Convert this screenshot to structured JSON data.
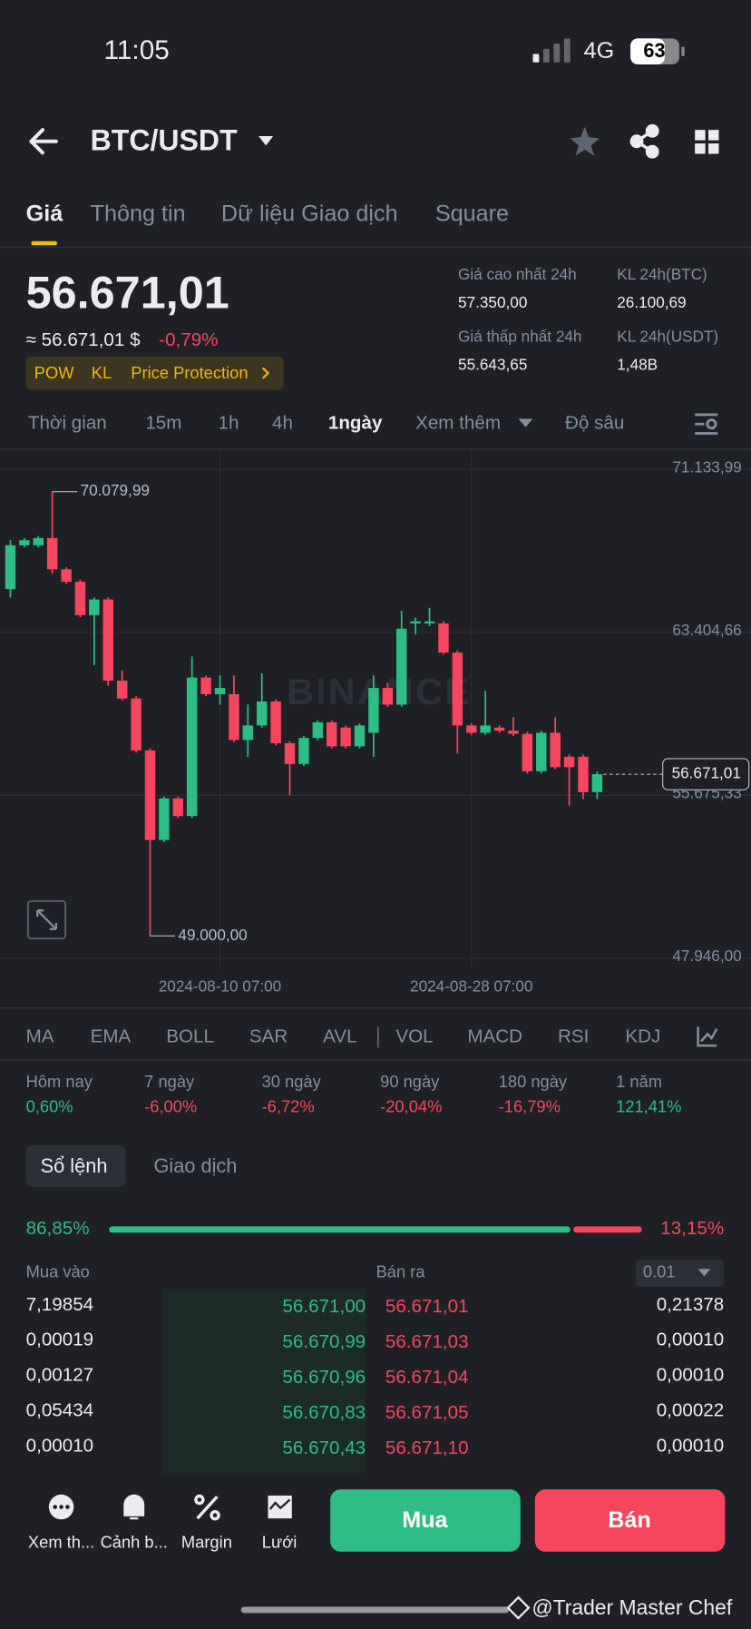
{
  "status_bar": {
    "time": "11:05",
    "network": "4G",
    "battery": "63"
  },
  "header": {
    "pair": "BTC/USDT"
  },
  "tabs": [
    "Giá",
    "Thông tin",
    "Dữ liệu Giao dịch",
    "Square"
  ],
  "price": {
    "last": "56.671,01",
    "approx": "≈ 56.671,01 $",
    "change": "-0,79%",
    "badges": [
      "POW",
      "KL",
      "Price Protection"
    ]
  },
  "stats": [
    {
      "label": "Giá cao nhất 24h",
      "value": "57.350,00"
    },
    {
      "label": "KL 24h(BTC)",
      "value": "26.100,69"
    },
    {
      "label": "Giá thấp nhất 24h",
      "value": "55.643,65"
    },
    {
      "label": "KL 24h(USDT)",
      "value": "1,48B"
    }
  ],
  "timeframes": [
    "Thời gian",
    "15m",
    "1h",
    "4h",
    "1ngày",
    "Xem thêm",
    "Độ sâu"
  ],
  "chart": {
    "type": "candlestick",
    "watermark": "BINANCE",
    "up_color": "#2ebd85",
    "down_color": "#f6465d",
    "ylim": [
      47450,
      72100
    ],
    "yticks": [
      {
        "value": 71133.99,
        "label": "71.133,99"
      },
      {
        "value": 63404.66,
        "label": "63.404,66"
      },
      {
        "value": 55675.33,
        "label": "55.675,33"
      },
      {
        "value": 47946.0,
        "label": "47.946,00"
      }
    ],
    "categories": [
      null,
      null,
      null,
      null,
      null,
      null,
      null,
      null,
      null,
      null,
      null,
      null,
      null,
      null,
      null,
      "2024-08-10 07:00",
      null,
      null,
      null,
      null,
      null,
      null,
      null,
      null,
      null,
      null,
      null,
      null,
      null,
      null,
      null,
      null,
      null,
      "2024-08-28 07:00",
      null,
      null,
      null,
      null,
      null,
      null,
      null,
      null,
      null
    ],
    "open": [
      65454,
      67529,
      67529,
      67874,
      66393,
      65800,
      64219,
      64960,
      61108,
      60268,
      57799,
      53551,
      55527,
      54687,
      61256,
      60466,
      60466,
      58293,
      58984,
      60120,
      58144,
      57157,
      58391,
      59132,
      58885,
      57996,
      58638,
      60762,
      59972,
      63824,
      63824,
      63824,
      62441,
      58984,
      58638,
      58885,
      58737,
      58589,
      56811,
      58638,
      57502,
      57502,
      55823
    ],
    "high": [
      67775,
      67874,
      67970,
      70079.99,
      66490,
      65900,
      65059,
      65059,
      61602,
      60370,
      57900,
      55620,
      55620,
      62244,
      61355,
      61355,
      61355,
      59970,
      61454,
      60220,
      58240,
      58490,
      59230,
      59230,
      58980,
      59080,
      61355,
      61000,
      64417,
      64100,
      64565,
      63923,
      62540,
      59080,
      60614,
      58984,
      59379,
      58690,
      58737,
      59379,
      57600,
      57600,
      56800
    ],
    "low": [
      65059,
      67430,
      67430,
      66195,
      65700,
      64120,
      61849,
      60861,
      60170,
      57700,
      49000,
      53450,
      54590,
      54590,
      60370,
      59972,
      58190,
      57500,
      58880,
      58040,
      55675,
      57060,
      58290,
      57900,
      57900,
      57900,
      57500,
      59870,
      59870,
      63300,
      63700,
      62340,
      57651,
      58540,
      58540,
      58640,
      58490,
      56710,
      56710,
      56910,
      55181,
      55500,
      55500
    ],
    "close": [
      67529,
      67775,
      67874,
      66393,
      65800,
      64219,
      64960,
      61108,
      60268,
      57799,
      53551,
      55527,
      54687,
      61256,
      60466,
      60762,
      58293,
      58984,
      60120,
      58144,
      57157,
      58391,
      59132,
      57996,
      57996,
      58984,
      60762,
      59972,
      63577,
      63923,
      63923,
      62441,
      58984,
      58638,
      58984,
      58737,
      58589,
      56811,
      58638,
      57008,
      57008,
      55823,
      56671.01
    ],
    "max_label": {
      "value": 70079.99,
      "label": "70.079,99"
    },
    "min_label": {
      "value": 49000.0,
      "label": "49.000,00"
    },
    "current": {
      "value": 56671.01,
      "label": "56.671,01"
    }
  },
  "indicators": [
    "MA",
    "EMA",
    "BOLL",
    "SAR",
    "AVL",
    "VOL",
    "MACD",
    "RSI",
    "KDJ"
  ],
  "performance": [
    {
      "label": "Hôm nay",
      "value": "0,60%",
      "up": true
    },
    {
      "label": "7 ngày",
      "value": "-6,00%",
      "up": false
    },
    {
      "label": "30 ngày",
      "value": "-6,72%",
      "up": false
    },
    {
      "label": "90 ngày",
      "value": "-20,04%",
      "up": false
    },
    {
      "label": "180 ngày",
      "value": "-16,79%",
      "up": false
    },
    {
      "label": "1 năm",
      "value": "121,41%",
      "up": true
    }
  ],
  "book_tabs": [
    "Sổ lệnh",
    "Giao dịch"
  ],
  "orderbook": {
    "buy_ratio": 86.85,
    "buy_ratio_label": "86,85%",
    "sell_ratio": 13.15,
    "sell_ratio_label": "13,15%",
    "bid_header": "Mua vào",
    "ask_header": "Bán ra",
    "step": "0.01",
    "rows": [
      {
        "bid_qty": "7,19854",
        "bid": "56.671,00",
        "ask": "56.671,01",
        "ask_qty": "0,21378"
      },
      {
        "bid_qty": "0,00019",
        "bid": "56.670,99",
        "ask": "56.671,03",
        "ask_qty": "0,00010"
      },
      {
        "bid_qty": "0,00127",
        "bid": "56.670,96",
        "ask": "56.671,04",
        "ask_qty": "0,00010"
      },
      {
        "bid_qty": "0,05434",
        "bid": "56.670,83",
        "ask": "56.671,05",
        "ask_qty": "0,00022"
      },
      {
        "bid_qty": "0,00010",
        "bid": "56.670,43",
        "ask": "56.671,10",
        "ask_qty": "0,00010"
      }
    ]
  },
  "bottom_nav": [
    "Xem th...",
    "Cảnh b...",
    "Margin",
    "Lưới"
  ],
  "buttons": {
    "buy": "Mua",
    "sell": "Bán"
  },
  "watermark": "@Trader Master Chef"
}
